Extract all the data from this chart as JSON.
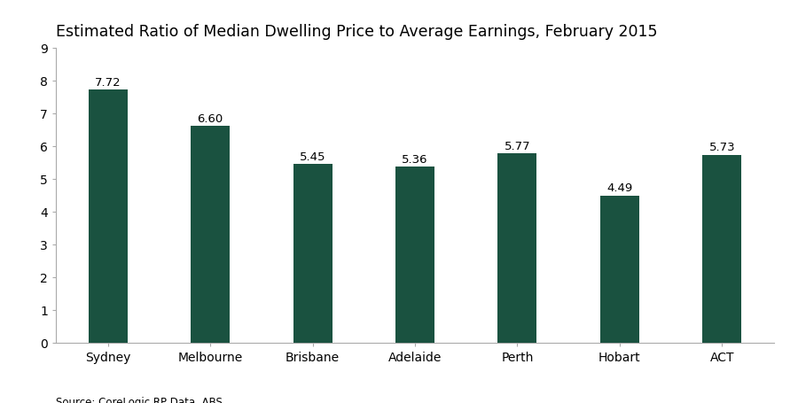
{
  "title": "Estimated Ratio of Median Dwelling Price to Average Earnings, February 2015",
  "categories": [
    "Sydney",
    "Melbourne",
    "Brisbane",
    "Adelaide",
    "Perth",
    "Hobart",
    "ACT"
  ],
  "values": [
    7.72,
    6.6,
    5.45,
    5.36,
    5.77,
    4.49,
    5.73
  ],
  "bar_color": "#1a5240",
  "ylim": [
    0,
    9
  ],
  "yticks": [
    0,
    1,
    2,
    3,
    4,
    5,
    6,
    7,
    8,
    9
  ],
  "source_text": "Source: CoreLogic RP Data, ABS",
  "title_fontsize": 12.5,
  "label_fontsize": 9.5,
  "tick_fontsize": 10,
  "source_fontsize": 8.5,
  "background_color": "#ffffff",
  "bar_width": 0.38
}
